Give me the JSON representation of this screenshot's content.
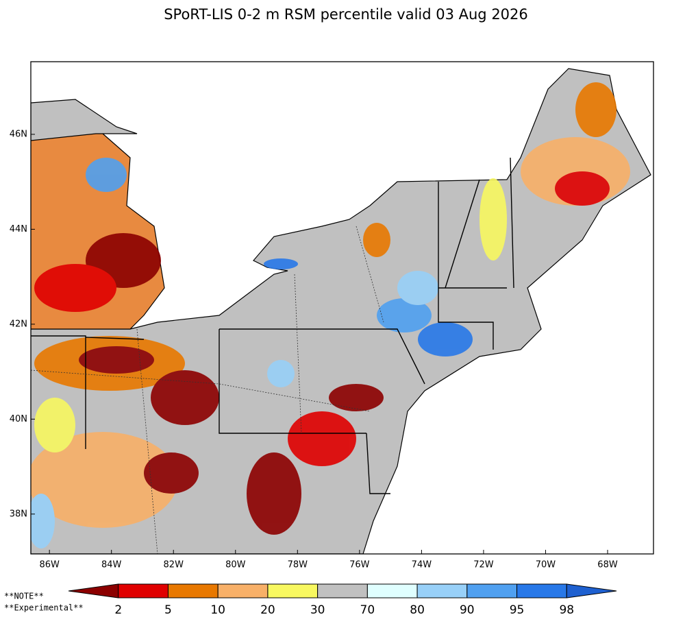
{
  "title": "SPoRT-LIS 0-2 m RSM percentile valid 03 Aug 2026",
  "map": {
    "lon_range": [
      -86.6,
      -66.52
    ],
    "lat_range": [
      37.16,
      47.53
    ],
    "lon_ticks": [
      {
        "value": -86,
        "label": "86W"
      },
      {
        "value": -84,
        "label": "84W"
      },
      {
        "value": -82,
        "label": "82W"
      },
      {
        "value": -80,
        "label": "80W"
      },
      {
        "value": -78,
        "label": "78W"
      },
      {
        "value": -76,
        "label": "76W"
      },
      {
        "value": -74,
        "label": "74W"
      },
      {
        "value": -72,
        "label": "72W"
      },
      {
        "value": -70,
        "label": "70W"
      },
      {
        "value": -68,
        "label": "68W"
      }
    ],
    "lat_ticks": [
      {
        "value": 38,
        "label": "38N"
      },
      {
        "value": 40,
        "label": "40N"
      },
      {
        "value": 42,
        "label": "42N"
      },
      {
        "value": 44,
        "label": "44N"
      },
      {
        "value": 46,
        "label": "46N"
      }
    ]
  },
  "colorbar": {
    "bounds": [
      2,
      5,
      10,
      20,
      30,
      70,
      80,
      90,
      95,
      98
    ],
    "colors": [
      "#8c0000",
      "#e00000",
      "#e87800",
      "#f8b068",
      "#f8f860",
      "#c0c0c0",
      "#e0ffff",
      "#98d0f8",
      "#50a0f0",
      "#2878e8",
      "#1e60d0"
    ]
  },
  "notes": [
    "**NOTE**",
    "**Experimental**"
  ]
}
